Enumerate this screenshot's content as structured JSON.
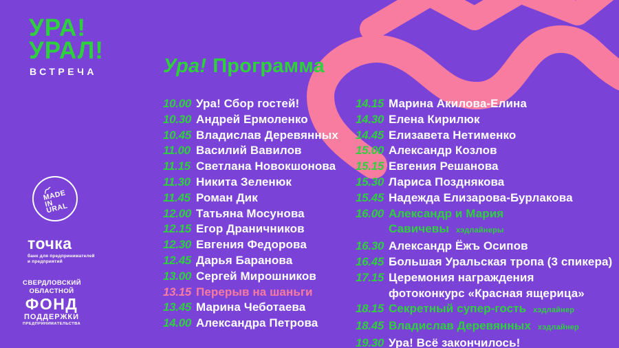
{
  "colors": {
    "background": "#7B42D8",
    "green": "#2ED13D",
    "pink": "#F87BA0",
    "white": "#FFFFFF"
  },
  "brand": {
    "event_logo_line1": "УРА!",
    "event_logo_line2": "УРАЛ!",
    "event_logo_line3": "ВСТРЕЧА",
    "made_in_ural": {
      "lines": [
        "MADE",
        "IN",
        "URAL"
      ]
    },
    "tochka": {
      "name": "точка",
      "tagline_line1": "банк для предпринимателей",
      "tagline_line2": "и предприятий"
    },
    "fund": {
      "lines": [
        "СВЕРДЛОВСКИЙ",
        "ОБЛАСТНОЙ",
        "ФОНД",
        "ПОДДЕРЖКИ",
        "ПРЕДПРИНИМАТЕЛЬСТВА"
      ]
    }
  },
  "header": {
    "title_accent": "Ура!",
    "title_rest": "Программа"
  },
  "schedule": {
    "columns": [
      {
        "side": "left",
        "rows": [
          {
            "time": "10.00",
            "title": "Ура! Сбор гостей!"
          },
          {
            "time": "10.30",
            "title": "Андрей Ермоленко"
          },
          {
            "time": "10.45",
            "title": "Владислав Деревянных"
          },
          {
            "time": "11.00",
            "title": "Василий Вавилов"
          },
          {
            "time": "11.15",
            "title": "Светлана Новокшонова"
          },
          {
            "time": "11.30",
            "title": "Никита Зеленюк"
          },
          {
            "time": "11.45",
            "title": "Роман Дик"
          },
          {
            "time": "12.00",
            "title": "Татьяна Мосунова"
          },
          {
            "time": "12.15",
            "title": "Егор Драничников"
          },
          {
            "time": "12.30",
            "title": "Евгения Федорова"
          },
          {
            "time": "12.45",
            "title": "Дарья Баранова"
          },
          {
            "time": "13.00",
            "title": "Сергей Мирошников"
          },
          {
            "time": "13.15",
            "title": "Перерыв на шаньги",
            "style": "break"
          },
          {
            "time": "13.45",
            "title": "Марина Чеботаева"
          },
          {
            "time": "14.00",
            "title": "Александра Петрова"
          }
        ]
      },
      {
        "side": "right",
        "rows": [
          {
            "time": "14.15",
            "title": "Марина Акилова-Елина"
          },
          {
            "time": "14.30",
            "title": "Елена Кирилюк"
          },
          {
            "time": "14.45",
            "title": "Елизавета Нетименко"
          },
          {
            "time": "15.00",
            "title": "Александр Козлов"
          },
          {
            "time": "15.15",
            "title": "Евгения Решанова"
          },
          {
            "time": "15.30",
            "title": "Лариса Позднякова"
          },
          {
            "time": "15.45",
            "title": "Надежда Елизарова-Бурлакова"
          },
          {
            "time": "16.00",
            "title": "Александр и Мария Савичевы",
            "style": "headliner",
            "badge": "хэдлайнеры"
          },
          {
            "time": "16.30",
            "title": "Александр Ёжъ Осипов"
          },
          {
            "time": "16.45",
            "title": "Большая Уральская тропа (3 спикера)"
          },
          {
            "time": "17.15",
            "title": "Церемония награждения",
            "title_line2": "фотоконкурс «Красная ящерица»"
          },
          {
            "time": "18.15",
            "title": "Секретный супер-гость",
            "style": "headliner",
            "badge": "хэдлайнер"
          },
          {
            "time": "18.45",
            "title": "Владислав Деревянных",
            "style": "headliner",
            "badge": "хэдлайнер"
          },
          {
            "time": "19.30",
            "title": "Ура! Всё закончилось!"
          }
        ]
      }
    ]
  }
}
